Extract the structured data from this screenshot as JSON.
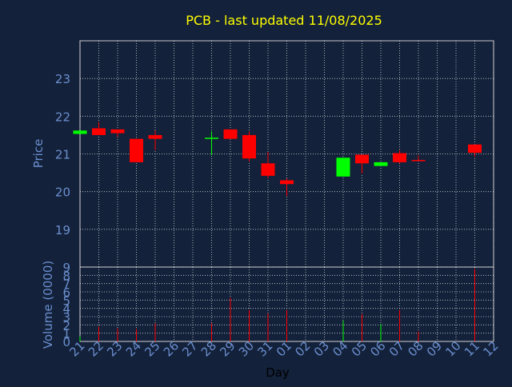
{
  "title": "PCB - last updated 11/08/2025",
  "colors": {
    "background": "#13213a",
    "title": "#ffff00",
    "axis_text": "#6b8fcf",
    "grid": "#ffffff",
    "up": "#00ff00",
    "down": "#ff0000"
  },
  "chart_data": [
    {
      "type": "candlestick",
      "ylabel": "Price",
      "ylim": [
        18,
        24
      ],
      "yticks": [
        19,
        20,
        21,
        22,
        23
      ],
      "grid": true,
      "categories": [
        "21",
        "22",
        "23",
        "24",
        "25",
        "26",
        "27",
        "28",
        "29",
        "30",
        "31",
        "01",
        "02",
        "03",
        "04",
        "05",
        "06",
        "07",
        "08",
        "09",
        "10",
        "11",
        "12"
      ],
      "candles": [
        {
          "x": 0,
          "open": 21.53,
          "close": 21.62,
          "high": 21.62,
          "low": 21.53
        },
        {
          "x": 1,
          "open": 21.68,
          "close": 21.5,
          "high": 21.85,
          "low": 21.5
        },
        {
          "x": 2,
          "open": 21.65,
          "close": 21.55,
          "high": 21.65,
          "low": 21.45
        },
        {
          "x": 3,
          "open": 21.4,
          "close": 20.78,
          "high": 21.4,
          "low": 20.78
        },
        {
          "x": 4,
          "open": 21.5,
          "close": 21.4,
          "high": 21.62,
          "low": 21.1
        },
        {
          "x": 7,
          "open": 21.43,
          "close": 21.43,
          "high": 21.6,
          "low": 20.97
        },
        {
          "x": 8,
          "open": 21.65,
          "close": 21.4,
          "high": 21.65,
          "low": 21.4
        },
        {
          "x": 9,
          "open": 21.5,
          "close": 20.88,
          "high": 21.6,
          "low": 20.8
        },
        {
          "x": 10,
          "open": 20.75,
          "close": 20.42,
          "high": 21.05,
          "low": 20.35
        },
        {
          "x": 11,
          "open": 20.3,
          "close": 20.2,
          "high": 20.35,
          "low": 19.88
        },
        {
          "x": 14,
          "open": 20.4,
          "close": 20.9,
          "high": 20.9,
          "low": 20.4
        },
        {
          "x": 15,
          "open": 20.98,
          "close": 20.75,
          "high": 20.98,
          "low": 20.48
        },
        {
          "x": 16,
          "open": 20.68,
          "close": 20.78,
          "high": 20.78,
          "low": 20.68
        },
        {
          "x": 17,
          "open": 21.02,
          "close": 20.78,
          "high": 21.1,
          "low": 20.75
        },
        {
          "x": 18,
          "open": 20.84,
          "close": 20.82,
          "high": 20.96,
          "low": 20.82
        },
        {
          "x": 21,
          "open": 21.25,
          "close": 21.03,
          "high": 21.25,
          "low": 20.92
        }
      ]
    },
    {
      "type": "bar",
      "xlabel": "Day",
      "ylabel": "Volume (0000)",
      "ylim": [
        0,
        9
      ],
      "yticks": [
        0,
        1,
        2,
        3,
        4,
        5,
        6,
        7,
        8,
        9
      ],
      "grid": true,
      "categories": [
        "21",
        "22",
        "23",
        "24",
        "25",
        "26",
        "27",
        "28",
        "29",
        "30",
        "31",
        "01",
        "02",
        "03",
        "04",
        "05",
        "06",
        "07",
        "08",
        "09",
        "10",
        "11",
        "12"
      ],
      "bars": [
        {
          "x": 0,
          "value": 0.6,
          "direction": "up"
        },
        {
          "x": 1,
          "value": 1.8,
          "direction": "down"
        },
        {
          "x": 2,
          "value": 1.6,
          "direction": "down"
        },
        {
          "x": 3,
          "value": 1.5,
          "direction": "down"
        },
        {
          "x": 4,
          "value": 2.2,
          "direction": "down"
        },
        {
          "x": 7,
          "value": 2.2,
          "direction": "down"
        },
        {
          "x": 8,
          "value": 5.3,
          "direction": "down"
        },
        {
          "x": 9,
          "value": 3.8,
          "direction": "down"
        },
        {
          "x": 10,
          "value": 3.4,
          "direction": "down"
        },
        {
          "x": 11,
          "value": 3.8,
          "direction": "down"
        },
        {
          "x": 14,
          "value": 2.5,
          "direction": "up"
        },
        {
          "x": 15,
          "value": 3.3,
          "direction": "down"
        },
        {
          "x": 16,
          "value": 2.1,
          "direction": "up"
        },
        {
          "x": 17,
          "value": 3.8,
          "direction": "down"
        },
        {
          "x": 18,
          "value": 1.2,
          "direction": "down"
        },
        {
          "x": 21,
          "value": 8.8,
          "direction": "down"
        }
      ]
    }
  ]
}
